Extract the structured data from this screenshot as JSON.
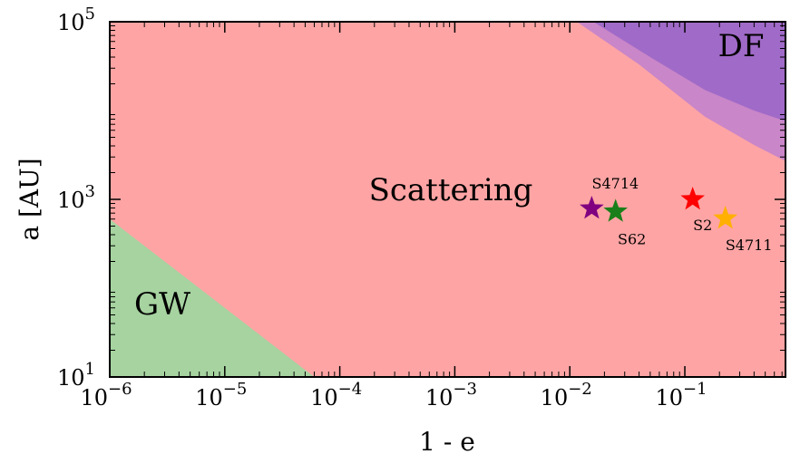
{
  "chart_data": {
    "type": "scatter",
    "xlabel": "1 - e",
    "ylabel": "a [AU]",
    "x_scale": "log",
    "y_scale": "log",
    "xlim": [
      1e-06,
      0.75
    ],
    "ylim": [
      10,
      100000
    ],
    "x_ticks": [
      {
        "value": 1e-06,
        "label": "10",
        "exp": "−6"
      },
      {
        "value": 1e-05,
        "label": "10",
        "exp": "−5"
      },
      {
        "value": 0.0001,
        "label": "10",
        "exp": "−4"
      },
      {
        "value": 0.001,
        "label": "10",
        "exp": "−3"
      },
      {
        "value": 0.01,
        "label": "10",
        "exp": "−2"
      },
      {
        "value": 0.1,
        "label": "10",
        "exp": "−1"
      }
    ],
    "y_ticks": [
      {
        "value": 10,
        "label": "10",
        "exp": "1"
      },
      {
        "value": 1000,
        "label": "10",
        "exp": "3"
      },
      {
        "value": 100000,
        "label": "10",
        "exp": "5"
      }
    ],
    "regions": [
      {
        "name": "Scattering",
        "color": "#ffa4a4"
      },
      {
        "name": "GW",
        "color": "#a6d3a0",
        "boundary": [
          [
            1e-06,
            600
          ],
          [
            6e-05,
            10
          ]
        ]
      },
      {
        "name": "DF",
        "color": "#a06ac8",
        "boundary": [
          [
            0.016,
            100000
          ],
          [
            0.05,
            40000
          ],
          [
            0.15,
            17000
          ],
          [
            0.4,
            10000
          ],
          [
            0.75,
            7600
          ]
        ],
        "band_color": "#c986c8",
        "band_boundary": [
          [
            0.0115,
            100000
          ],
          [
            0.04,
            33000
          ],
          [
            0.15,
            8500
          ],
          [
            0.4,
            4100
          ],
          [
            0.75,
            2700
          ]
        ]
      }
    ],
    "stars": [
      {
        "name": "S4714",
        "x": 0.0155,
        "y": 790,
        "color": "#800080"
      },
      {
        "name": "S62",
        "x": 0.025,
        "y": 730,
        "color": "#1a7f1a"
      },
      {
        "name": "S2",
        "x": 0.117,
        "y": 1000,
        "color": "#ff0000"
      },
      {
        "name": "S4711",
        "x": 0.225,
        "y": 610,
        "color": "#ffb000"
      }
    ]
  }
}
